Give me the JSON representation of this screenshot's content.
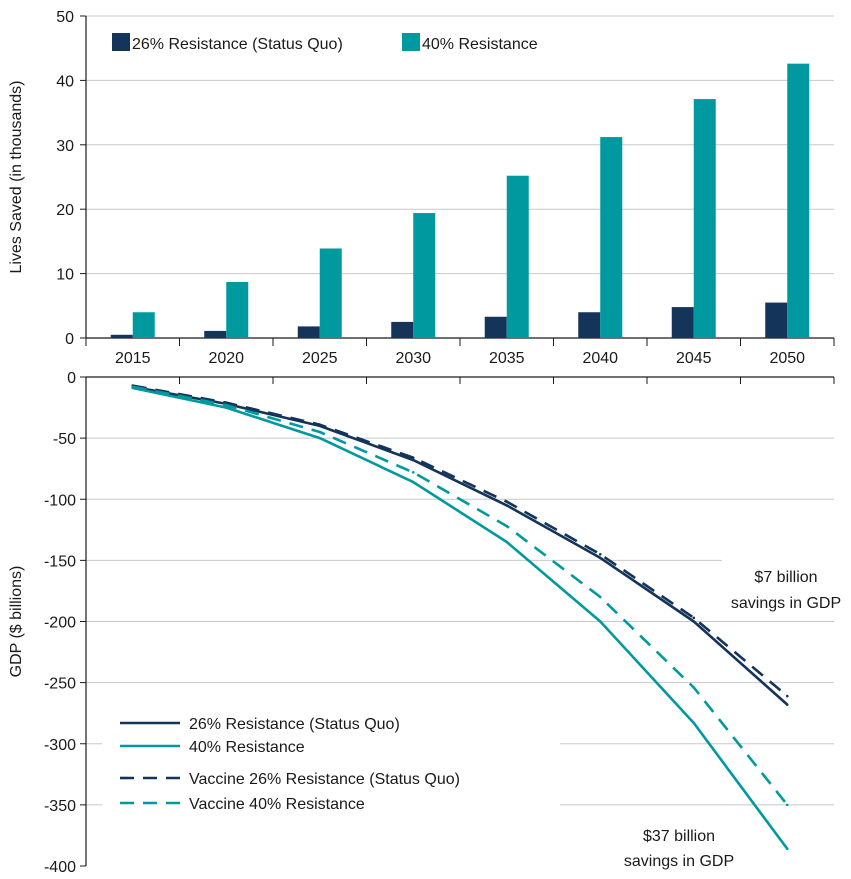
{
  "colors": {
    "dark": "#14345a",
    "teal": "#00999f",
    "grid": "#c8c8c8",
    "axis": "#1a1a1a"
  },
  "chart_data": [
    {
      "type": "bar",
      "ylabel": "Lives Saved (in thousands)",
      "ylim": [
        0,
        50
      ],
      "yticks": [
        0,
        10,
        20,
        30,
        40,
        50
      ],
      "categories": [
        "2015",
        "2020",
        "2025",
        "2030",
        "2035",
        "2040",
        "2045",
        "2050"
      ],
      "grid": true,
      "legend_position": "top-left",
      "series": [
        {
          "name": "26% Resistance (Status Quo)",
          "color": "#14345a",
          "values": [
            0.5,
            1.1,
            1.8,
            2.5,
            3.3,
            4.0,
            4.8,
            5.5
          ]
        },
        {
          "name": "40% Resistance",
          "color": "#00999f",
          "values": [
            4.0,
            8.7,
            13.9,
            19.4,
            25.2,
            31.2,
            37.1,
            42.6
          ]
        }
      ]
    },
    {
      "type": "line",
      "ylabel": "GDP ($ billions)",
      "ylim": [
        -400,
        0
      ],
      "yticks": [
        0,
        -50,
        -100,
        -150,
        -200,
        -250,
        -300,
        -350,
        -400
      ],
      "x": [
        "2015",
        "2020",
        "2025",
        "2030",
        "2035",
        "2040",
        "2045",
        "2050"
      ],
      "grid": true,
      "legend_position": "bottom-left",
      "series": [
        {
          "name": "26% Resistance (Status Quo)",
          "color": "#14345a",
          "dashed": false,
          "values": [
            -8,
            -22,
            -40,
            -68,
            -105,
            -148,
            -200,
            -268
          ]
        },
        {
          "name": "40% Resistance",
          "color": "#00999f",
          "dashed": false,
          "values": [
            -9,
            -25,
            -50,
            -86,
            -135,
            -200,
            -283,
            -386
          ]
        },
        {
          "name": "Vaccine  26% Resistance (Status Quo)",
          "color": "#14345a",
          "dashed": true,
          "values": [
            -7,
            -21,
            -39,
            -66,
            -102,
            -145,
            -197,
            -261
          ]
        },
        {
          "name": "Vaccine  40% Resistance",
          "color": "#00999f",
          "dashed": true,
          "values": [
            -8,
            -23,
            -45,
            -78,
            -122,
            -180,
            -254,
            -350
          ]
        }
      ],
      "annotations": [
        {
          "lines": [
            "$7 billion",
            "savings in GDP"
          ]
        },
        {
          "lines": [
            "$37 billion",
            "savings in GDP"
          ]
        }
      ]
    }
  ]
}
